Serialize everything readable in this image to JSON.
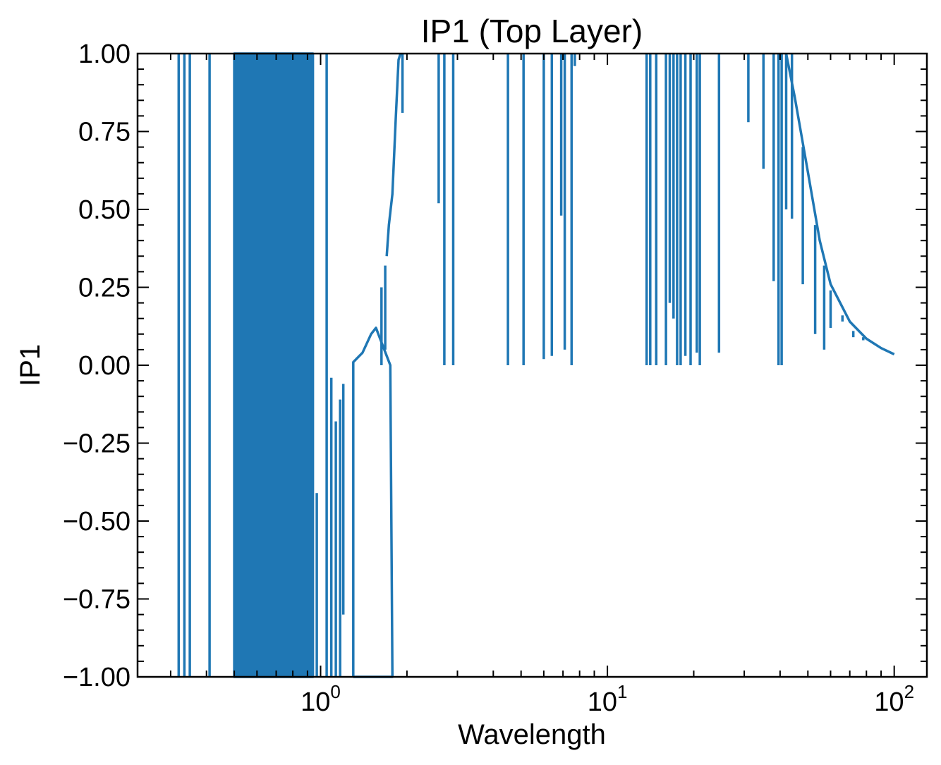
{
  "chart_data": {
    "type": "line",
    "title": "IP1 (Top Layer)",
    "xlabel": "Wavelength",
    "ylabel": "IP1",
    "xscale": "log",
    "xlim": [
      0.23,
      130
    ],
    "ylim": [
      -1.0,
      1.0
    ],
    "grid": false,
    "line_color": "#1f77b4",
    "y_ticks": [
      "1.00",
      "0.75",
      "0.50",
      "0.25",
      "0.00",
      "−0.25",
      "−0.50",
      "−0.75",
      "−1.00"
    ],
    "x_ticks": [
      {
        "base": "10",
        "exp": "0",
        "value": 1
      },
      {
        "base": "10",
        "exp": "1",
        "value": 10
      },
      {
        "base": "10",
        "exp": "2",
        "value": 100
      }
    ],
    "series": [
      {
        "segments": [
          [
            [
              0.32,
              -1
            ],
            [
              0.32,
              1
            ]
          ],
          [
            [
              0.335,
              -1
            ],
            [
              0.335,
              1
            ]
          ],
          [
            [
              0.35,
              -1
            ],
            [
              0.35,
              1
            ]
          ],
          [
            [
              0.41,
              -1
            ],
            [
              0.41,
              1
            ]
          ],
          [
            [
              0.5,
              -1
            ],
            [
              0.5,
              1
            ],
            [
              0.94,
              1
            ],
            [
              0.94,
              -1
            ],
            [
              0.5,
              -1
            ]
          ],
          [
            [
              0.97,
              -1
            ],
            [
              0.97,
              -0.41
            ]
          ],
          [
            [
              1.05,
              -1
            ],
            [
              1.05,
              1
            ]
          ],
          [
            [
              1.09,
              -1
            ],
            [
              1.09,
              -0.04
            ]
          ],
          [
            [
              1.13,
              -1
            ],
            [
              1.13,
              -0.18
            ]
          ],
          [
            [
              1.17,
              -1
            ],
            [
              1.17,
              -0.11
            ]
          ],
          [
            [
              1.2,
              -0.8
            ],
            [
              1.2,
              -0.06
            ]
          ],
          [
            [
              1.3,
              -1
            ],
            [
              1.3,
              0.01
            ],
            [
              1.4,
              0.04
            ],
            [
              1.5,
              0.1
            ],
            [
              1.56,
              0.12
            ],
            [
              1.62,
              0.08
            ],
            [
              1.75,
              0.0
            ],
            [
              1.78,
              -1
            ],
            [
              1.3,
              -1
            ]
          ],
          [
            [
              1.63,
              0.0
            ],
            [
              1.63,
              0.25
            ]
          ],
          [
            [
              1.68,
              0.05
            ],
            [
              1.68,
              0.32
            ]
          ],
          [
            [
              1.7,
              0.35
            ],
            [
              1.73,
              0.45
            ],
            [
              1.78,
              0.55
            ],
            [
              1.83,
              0.8
            ],
            [
              1.87,
              0.98
            ],
            [
              1.9,
              1.0
            ]
          ],
          [
            [
              1.93,
              0.81
            ],
            [
              1.93,
              1.0
            ]
          ],
          [
            [
              2.58,
              0.52
            ],
            [
              2.58,
              1.0
            ]
          ],
          [
            [
              2.7,
              0.0
            ],
            [
              2.7,
              1.0
            ]
          ],
          [
            [
              2.9,
              0.0
            ],
            [
              2.9,
              1.0
            ]
          ],
          [
            [
              4.5,
              0.0
            ],
            [
              4.5,
              1.0
            ]
          ],
          [
            [
              5.1,
              0.0
            ],
            [
              5.1,
              1.0
            ]
          ],
          [
            [
              6.0,
              0.02
            ],
            [
              6.0,
              1.0
            ]
          ],
          [
            [
              6.4,
              0.03
            ],
            [
              6.4,
              1.0
            ]
          ],
          [
            [
              6.9,
              0.48
            ],
            [
              6.9,
              1.0
            ]
          ],
          [
            [
              7.1,
              0.05
            ],
            [
              7.1,
              1.0
            ]
          ],
          [
            [
              7.5,
              0.0
            ],
            [
              7.5,
              1.0
            ]
          ],
          [
            [
              7.7,
              0.96
            ],
            [
              7.7,
              1.0
            ]
          ],
          [
            [
              13.7,
              0.0
            ],
            [
              13.7,
              1.0
            ]
          ],
          [
            [
              14.1,
              0.0
            ],
            [
              14.1,
              1.0
            ]
          ],
          [
            [
              14.8,
              0.0
            ],
            [
              14.8,
              1.0
            ]
          ],
          [
            [
              16.0,
              0.0
            ],
            [
              16.0,
              1.0
            ]
          ],
          [
            [
              16.5,
              0.2
            ],
            [
              16.5,
              1.0
            ]
          ],
          [
            [
              17.0,
              0.15
            ],
            [
              17.0,
              1.0
            ]
          ],
          [
            [
              17.5,
              0.0
            ],
            [
              17.5,
              1.0
            ]
          ],
          [
            [
              18.0,
              0.0
            ],
            [
              18.0,
              1.0
            ]
          ],
          [
            [
              18.7,
              0.03
            ],
            [
              18.7,
              1.0
            ]
          ],
          [
            [
              19.5,
              0.0
            ],
            [
              19.5,
              1.0
            ]
          ],
          [
            [
              20.5,
              0.04
            ],
            [
              20.5,
              1.0
            ]
          ],
          [
            [
              21.0,
              0.0
            ],
            [
              21.0,
              1.0
            ]
          ],
          [
            [
              24.5,
              0.04
            ],
            [
              24.5,
              1.0
            ]
          ],
          [
            [
              31.0,
              0.78
            ],
            [
              31.0,
              1.0
            ]
          ],
          [
            [
              35.0,
              0.63
            ],
            [
              35.0,
              1.0
            ]
          ],
          [
            [
              38.0,
              0.27
            ],
            [
              38.0,
              1.0
            ]
          ],
          [
            [
              39.5,
              0.0
            ],
            [
              39.5,
              1.0
            ]
          ],
          [
            [
              40.5,
              0.0
            ],
            [
              40.5,
              1.0
            ]
          ],
          [
            [
              42.0,
              0.5
            ],
            [
              42.0,
              1.0
            ]
          ],
          [
            [
              44.0,
              0.47
            ],
            [
              44.0,
              1.0
            ]
          ],
          [
            [
              42.0,
              1.0
            ],
            [
              45.0,
              0.86
            ],
            [
              50.0,
              0.62
            ],
            [
              55.0,
              0.4
            ],
            [
              60.0,
              0.26
            ],
            [
              70.0,
              0.14
            ],
            [
              80.0,
              0.085
            ],
            [
              90.0,
              0.055
            ],
            [
              100.0,
              0.035
            ]
          ],
          [
            [
              48.0,
              0.26
            ],
            [
              48.0,
              0.7
            ]
          ],
          [
            [
              53.0,
              0.1
            ],
            [
              53.0,
              0.45
            ]
          ],
          [
            [
              57.0,
              0.05
            ],
            [
              57.0,
              0.32
            ]
          ],
          [
            [
              60.0,
              0.12
            ],
            [
              60.0,
              0.24
            ]
          ],
          [
            [
              66.0,
              0.14
            ],
            [
              66.0,
              0.16
            ]
          ],
          [
            [
              72.0,
              0.09
            ],
            [
              72.0,
              0.11
            ]
          ],
          [
            [
              78.0,
              0.08
            ],
            [
              78.0,
              0.09
            ]
          ]
        ]
      }
    ]
  }
}
